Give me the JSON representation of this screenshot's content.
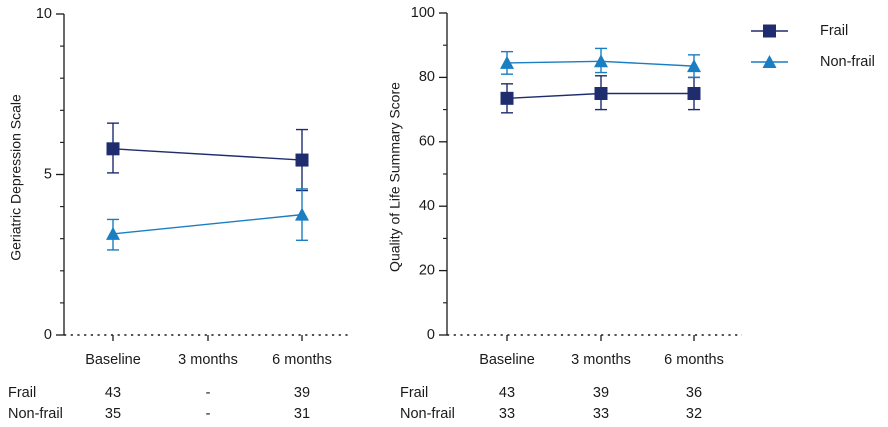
{
  "colors": {
    "frail": "#1f2d6e",
    "non_frail": "#1a7ec2",
    "axis": "#1a1a1a"
  },
  "legend": {
    "position": "top-right",
    "items": [
      {
        "key": "frail",
        "label": "Frail",
        "marker": "square"
      },
      {
        "key": "non_frail",
        "label": "Non-frail",
        "marker": "triangle"
      }
    ]
  },
  "chart_data": [
    {
      "type": "line",
      "ylabel": "Geriatric Depression Scale",
      "xlabel": "",
      "categories": [
        "Baseline",
        "3 months",
        "6 months"
      ],
      "ylim": [
        0,
        10
      ],
      "yticks": [
        "0",
        "5",
        "10"
      ],
      "ymajor": [
        0,
        5,
        10
      ],
      "yminor": [
        1,
        2,
        3,
        4,
        6,
        7,
        8,
        9
      ],
      "x_axis_style": "dotted",
      "series": [
        {
          "name": "Frail",
          "marker": "square",
          "points": [
            {
              "x": 0,
              "y": 5.8,
              "err_lo": 5.05,
              "err_hi": 6.6
            },
            {
              "x": 2,
              "y": 5.45,
              "err_lo": 4.5,
              "err_hi": 6.4
            }
          ]
        },
        {
          "name": "Non-frail",
          "marker": "triangle",
          "points": [
            {
              "x": 0,
              "y": 3.15,
              "err_lo": 2.65,
              "err_hi": 3.6
            },
            {
              "x": 2,
              "y": 3.75,
              "err_lo": 2.95,
              "err_hi": 4.55
            }
          ]
        }
      ],
      "n_table": [
        {
          "label": "Frail",
          "values": [
            "43",
            "-",
            "39"
          ]
        },
        {
          "label": "Non-frail",
          "values": [
            "35",
            "-",
            "31"
          ]
        }
      ]
    },
    {
      "type": "line",
      "ylabel": "Quality of Life Summary Score",
      "xlabel": "",
      "categories": [
        "Baseline",
        "3 months",
        "6 months"
      ],
      "ylim": [
        0,
        100
      ],
      "yticks": [
        "0",
        "20",
        "40",
        "60",
        "80",
        "100"
      ],
      "ymajor": [
        0,
        20,
        40,
        60,
        80,
        100
      ],
      "yminor": [
        10,
        30,
        50,
        70,
        90
      ],
      "x_axis_style": "dotted",
      "series": [
        {
          "name": "Frail",
          "marker": "square",
          "points": [
            {
              "x": 0,
              "y": 73.5,
              "err_lo": 69,
              "err_hi": 78
            },
            {
              "x": 1,
              "y": 75,
              "err_lo": 70,
              "err_hi": 80.5
            },
            {
              "x": 2,
              "y": 75,
              "err_lo": 70,
              "err_hi": 80
            }
          ]
        },
        {
          "name": "Non-frail",
          "marker": "triangle",
          "points": [
            {
              "x": 0,
              "y": 84.5,
              "err_lo": 81,
              "err_hi": 88
            },
            {
              "x": 1,
              "y": 85,
              "err_lo": 81.5,
              "err_hi": 89
            },
            {
              "x": 2,
              "y": 83.5,
              "err_lo": 80,
              "err_hi": 87
            }
          ]
        }
      ],
      "n_table": [
        {
          "label": "Frail",
          "values": [
            "43",
            "39",
            "36"
          ]
        },
        {
          "label": "Non-frail",
          "values": [
            "33",
            "33",
            "32"
          ]
        }
      ]
    }
  ]
}
